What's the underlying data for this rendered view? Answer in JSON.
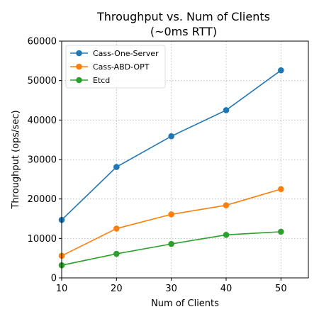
{
  "chart_data": {
    "type": "line",
    "title_line1": "Throughput vs. Num of Clients",
    "title_line2": "(~0ms RTT)",
    "xlabel": "Num of Clients",
    "ylabel": "Throughput (ops/sec)",
    "x": [
      10,
      20,
      30,
      40,
      50
    ],
    "xlim": [
      10,
      55
    ],
    "ylim": [
      0,
      60000
    ],
    "xticks": [
      10,
      20,
      30,
      40,
      50
    ],
    "yticks": [
      0,
      10000,
      20000,
      30000,
      40000,
      50000,
      60000
    ],
    "grid": true,
    "legend_position": "upper-left",
    "series": [
      {
        "name": "Cass-One-Server",
        "color": "#1f77b4",
        "values": [
          14700,
          28100,
          35900,
          42500,
          52600
        ]
      },
      {
        "name": "Cass-ABD-OPT",
        "color": "#ff7f0e",
        "values": [
          5600,
          12500,
          16100,
          18400,
          22500
        ]
      },
      {
        "name": "Etcd",
        "color": "#2ca02c",
        "values": [
          3200,
          6100,
          8600,
          10900,
          11700
        ]
      }
    ]
  }
}
